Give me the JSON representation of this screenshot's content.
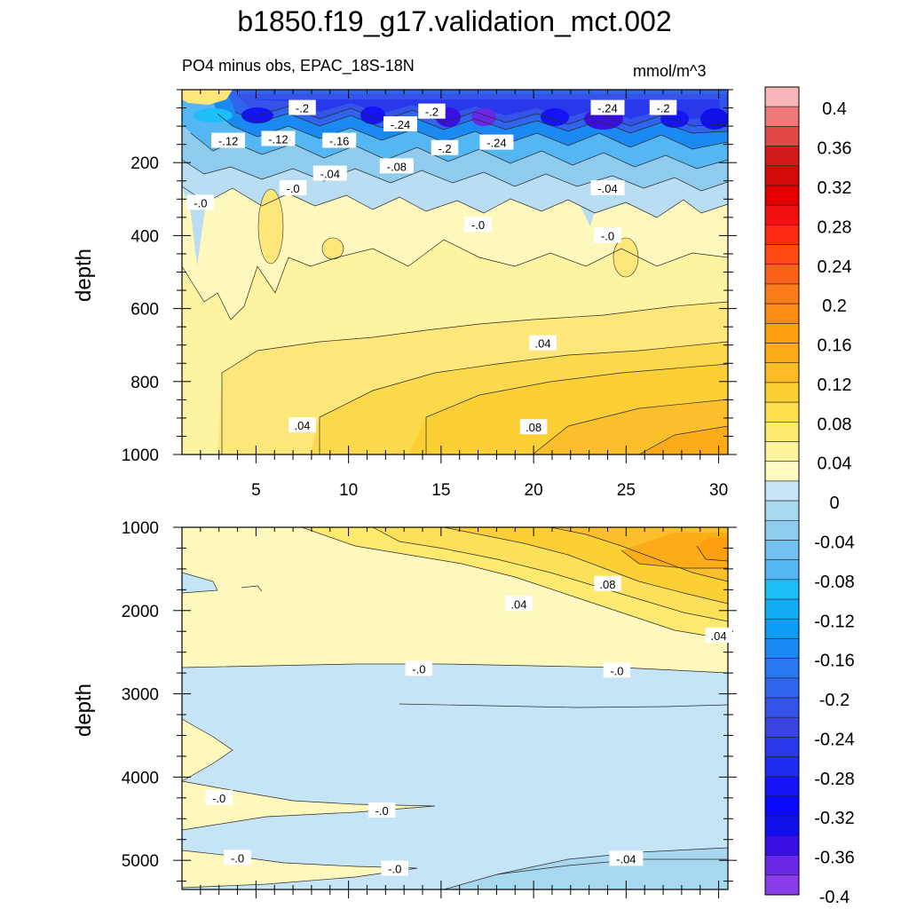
{
  "title": "b1850.f19_g17.validation_mct.002",
  "subtitle_left": "PO4 minus obs, EPAC_18S-18N",
  "units": "mmol/m^3",
  "chart_data": [
    {
      "type": "heatmap",
      "panel": "upper",
      "variable": "PO4 minus obs",
      "region": "EPAC_18S-18N",
      "units": "mmol/m^3",
      "xlabel": "",
      "ylabel": "depth",
      "xlim": [
        1,
        30.5
      ],
      "ylim": [
        1000,
        0
      ],
      "xticks": [
        5,
        10,
        15,
        20,
        25,
        30
      ],
      "xtick_labels": [
        "5",
        "10",
        "15",
        "20",
        "25",
        "30"
      ],
      "yticks": [
        200,
        400,
        600,
        800,
        1000
      ],
      "ytick_labels": [
        "200",
        "400",
        "600",
        "800",
        "1000"
      ],
      "contour_labels": [
        {
          "text": "-.2",
          "x": 7.5,
          "y": 50
        },
        {
          "text": "-.24",
          "x": 12.8,
          "y": 95
        },
        {
          "text": "-.2",
          "x": 14.5,
          "y": 60
        },
        {
          "text": "-.24",
          "x": 24.0,
          "y": 50
        },
        {
          "text": "-.2",
          "x": 27.0,
          "y": 50
        },
        {
          "text": "-.12",
          "x": 3.5,
          "y": 140
        },
        {
          "text": "-.12",
          "x": 6.2,
          "y": 135
        },
        {
          "text": "-.16",
          "x": 9.5,
          "y": 140
        },
        {
          "text": "-.2",
          "x": 15.2,
          "y": 160
        },
        {
          "text": "-.24",
          "x": 18.0,
          "y": 145
        },
        {
          "text": "-.04",
          "x": 9.0,
          "y": 230
        },
        {
          "text": "-.08",
          "x": 12.6,
          "y": 210
        },
        {
          "text": "-.0",
          "x": 2.0,
          "y": 310
        },
        {
          "text": "-.0",
          "x": 7.0,
          "y": 270
        },
        {
          "text": "-.0",
          "x": 17.0,
          "y": 370
        },
        {
          "text": "-.04",
          "x": 24.0,
          "y": 270
        },
        {
          "text": "-.0",
          "x": 24.0,
          "y": 400
        },
        {
          "text": ".04",
          "x": 20.5,
          "y": 695
        },
        {
          "text": ".04",
          "x": 7.5,
          "y": 920
        },
        {
          "text": ".08",
          "x": 20.0,
          "y": 925
        }
      ]
    },
    {
      "type": "heatmap",
      "panel": "lower",
      "variable": "PO4 minus obs",
      "region": "EPAC_18S-18N",
      "units": "mmol/m^3",
      "xlabel": "",
      "ylabel": "depth",
      "xlim": [
        1,
        30.5
      ],
      "ylim": [
        5350,
        1000
      ],
      "yticks": [
        1000,
        2000,
        3000,
        4000,
        5000
      ],
      "ytick_labels": [
        "1000",
        "2000",
        "3000",
        "4000",
        "5000"
      ],
      "contour_labels": [
        {
          "text": ".08",
          "x": 24.0,
          "y": 1680
        },
        {
          "text": ".04",
          "x": 19.2,
          "y": 1920
        },
        {
          "text": ".04",
          "x": 30.0,
          "y": 2300
        },
        {
          "text": "-.0",
          "x": 13.8,
          "y": 2700
        },
        {
          "text": "-.0",
          "x": 24.5,
          "y": 2720
        },
        {
          "text": "-.0",
          "x": 3.0,
          "y": 4250
        },
        {
          "text": "-.0",
          "x": 11.8,
          "y": 4400
        },
        {
          "text": "-.0",
          "x": 4.0,
          "y": 4970
        },
        {
          "text": "-.0",
          "x": 12.5,
          "y": 5100
        },
        {
          "text": "-.04",
          "x": 25.0,
          "y": 4980
        }
      ]
    },
    {
      "type": "colorbar",
      "levels": [
        -0.4,
        -0.38,
        -0.36,
        -0.34,
        -0.32,
        -0.3,
        -0.28,
        -0.26,
        -0.24,
        -0.22,
        -0.2,
        -0.18,
        -0.16,
        -0.14,
        -0.12,
        -0.1,
        -0.08,
        -0.06,
        -0.04,
        -0.02,
        0,
        0.02,
        0.04,
        0.06,
        0.08,
        0.1,
        0.12,
        0.14,
        0.16,
        0.18,
        0.2,
        0.22,
        0.24,
        0.26,
        0.28,
        0.3,
        0.32,
        0.34,
        0.36,
        0.38,
        0.4
      ],
      "labels": [
        "0.4",
        "0.36",
        "0.32",
        "0.28",
        "0.24",
        "0.2",
        "0.16",
        "0.12",
        "0.08",
        "0.04",
        "0",
        "-0.04",
        "-0.08",
        "-0.12",
        "-0.16",
        "-0.2",
        "-0.24",
        "-0.28",
        "-0.32",
        "-0.36",
        "-0.4"
      ],
      "colors_top_to_bottom": [
        "#f9b6b8",
        "#ef7878",
        "#e14848",
        "#d21c1c",
        "#d40909",
        "#e40000",
        "#f01010",
        "#fc2a10",
        "#fd4a12",
        "#fb6217",
        "#fc7b1c",
        "#fb8b13",
        "#fca010",
        "#fbac18",
        "#fbbc28",
        "#fcd035",
        "#fce04c",
        "#fdea6f",
        "#fef39c",
        "#fefac1",
        "#c7e5f5",
        "#a8d8f0",
        "#8ecbef",
        "#73bff1",
        "#55b6f4",
        "#1cbff7",
        "#10adf6",
        "#0c9df4",
        "#1a8af2",
        "#2a78f0",
        "#2f65ed",
        "#3553e8",
        "#3a44e0",
        "#2838ea",
        "#1f2bf1",
        "#1414f4",
        "#0808fa",
        "#1010e8",
        "#3a10e2",
        "#6a28e4",
        "#8a3ce9"
      ]
    }
  ]
}
